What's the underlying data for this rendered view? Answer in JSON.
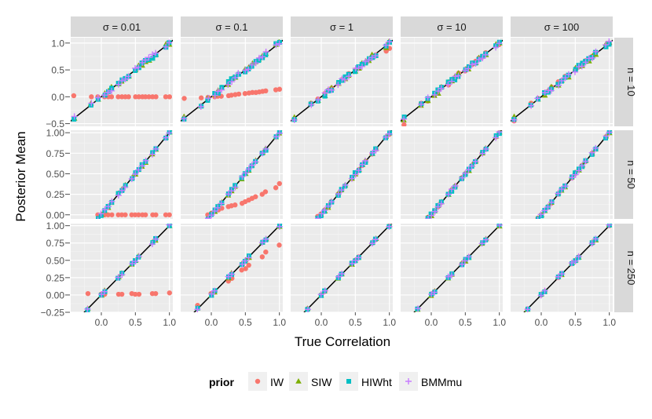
{
  "chart_data": {
    "type": "scatter",
    "layout": "facet-grid",
    "xlabel": "True Correlation",
    "ylabel": "Posterior Mean",
    "col_facet_labels": [
      "σ = 0.01",
      "σ = 0.1",
      "σ = 1",
      "σ = 10",
      "σ = 100"
    ],
    "row_facet_labels": [
      "n = 10",
      "n = 50",
      "n = 250"
    ],
    "x_ticks": [
      "0.0",
      "0.5",
      "1.0"
    ],
    "x_tick_values": [
      0,
      0.5,
      1
    ],
    "xlim": [
      -0.45,
      1.05
    ],
    "row_ylim": [
      [
        -0.55,
        1.1
      ],
      [
        -0.05,
        1.03
      ],
      [
        -0.25,
        1.03
      ]
    ],
    "row_y_ticks": [
      {
        "values": [
          -0.5,
          0,
          0.5,
          1
        ],
        "labels": [
          "−0.5",
          "0.0",
          "0.5",
          "1.0"
        ]
      },
      {
        "values": [
          0,
          0.25,
          0.5,
          0.75,
          1
        ],
        "labels": [
          "0.00",
          "0.25",
          "0.50",
          "0.75",
          "1.00"
        ]
      },
      {
        "values": [
          -0.25,
          0,
          0.25,
          0.5,
          0.75,
          1
        ],
        "labels": [
          "−0.25",
          "0.00",
          "0.25",
          "0.50",
          "0.75",
          "1.00"
        ]
      }
    ],
    "reference_line": "y = x",
    "legend": {
      "title": "prior",
      "position": "bottom",
      "entries": [
        {
          "label": "IW",
          "shape": "circle",
          "color": "#f8766d"
        },
        {
          "label": "SIW",
          "shape": "triangle",
          "color": "#7cae00"
        },
        {
          "label": "HIWht",
          "shape": "square",
          "color": "#00bfc4"
        },
        {
          "label": "BMMmu",
          "shape": "plus",
          "color": "#c77cff"
        }
      ]
    },
    "true_correlations": [
      [
        -0.4,
        -0.15,
        -0.05,
        0.05,
        0.1,
        0.15,
        0.25,
        0.3,
        0.35,
        0.4,
        0.5,
        0.55,
        0.6,
        0.65,
        0.7,
        0.75,
        0.8,
        0.95,
        1.0
      ],
      [
        -0.05,
        0.0,
        0.05,
        0.1,
        0.15,
        0.25,
        0.3,
        0.35,
        0.45,
        0.5,
        0.55,
        0.6,
        0.65,
        0.75,
        0.8,
        0.95,
        1.0
      ],
      [
        -0.2,
        0.0,
        0.05,
        0.25,
        0.3,
        0.45,
        0.5,
        0.55,
        0.75,
        0.8,
        1.0
      ]
    ],
    "iw_posterior": {
      "n = 10": {
        "σ = 0.01": [
          0.02,
          0.0,
          0.0,
          0.0,
          0.0,
          0.0,
          0.0,
          0.0,
          0.0,
          0.0,
          0.0,
          0.0,
          0.0,
          0.0,
          0.0,
          0.0,
          0.0,
          0.0,
          0.0
        ],
        "σ = 0.1": [
          -0.03,
          -0.02,
          -0.01,
          0.0,
          0.01,
          0.01,
          0.02,
          0.03,
          0.04,
          0.05,
          0.06,
          0.07,
          0.08,
          0.08,
          0.09,
          0.1,
          0.11,
          0.13,
          0.14
        ],
        "σ = 1": [
          -0.42,
          -0.12,
          -0.04,
          0.06,
          0.12,
          0.16,
          0.25,
          0.32,
          0.36,
          0.43,
          0.5,
          0.54,
          0.6,
          0.63,
          0.68,
          0.73,
          0.78,
          0.85,
          0.9
        ],
        "σ = 10": [
          -0.52,
          -0.12,
          -0.08,
          0.04,
          0.12,
          0.18,
          0.22,
          0.32,
          0.35,
          0.44,
          0.48,
          0.55,
          0.6,
          0.66,
          0.72,
          0.74,
          0.82,
          0.95,
          0.97
        ],
        "σ = 100": [
          -0.45,
          -0.12,
          -0.03,
          0.08,
          0.1,
          0.18,
          0.28,
          0.3,
          0.38,
          0.4,
          0.5,
          0.56,
          0.6,
          0.67,
          0.7,
          0.75,
          0.8,
          0.95,
          0.98
        ]
      },
      "n = 50": {
        "σ = 0.01": [
          0.0,
          0.0,
          0.0,
          0.0,
          0.0,
          0.0,
          0.0,
          0.0,
          0.0,
          0.0,
          0.0,
          0.0,
          0.0,
          0.0,
          0.0,
          0.0,
          0.0
        ],
        "σ = 0.1": [
          0.0,
          0.02,
          0.04,
          0.06,
          0.08,
          0.1,
          0.11,
          0.12,
          0.14,
          0.16,
          0.18,
          0.2,
          0.22,
          0.25,
          0.28,
          0.33,
          0.38
        ],
        "σ = 1": [
          -0.02,
          0.01,
          0.06,
          0.1,
          0.16,
          0.25,
          0.3,
          0.35,
          0.44,
          0.5,
          0.55,
          0.6,
          0.65,
          0.74,
          0.8,
          0.94,
          0.98
        ],
        "σ = 10": [
          -0.03,
          0.0,
          0.05,
          0.1,
          0.15,
          0.25,
          0.3,
          0.35,
          0.45,
          0.5,
          0.55,
          0.6,
          0.65,
          0.75,
          0.8,
          0.95,
          1.0
        ],
        "σ = 100": [
          -0.04,
          0.0,
          0.05,
          0.1,
          0.14,
          0.25,
          0.3,
          0.35,
          0.45,
          0.5,
          0.55,
          0.6,
          0.65,
          0.75,
          0.8,
          0.95,
          1.0
        ]
      },
      "n = 250": {
        "σ = 0.01": [
          0.02,
          0.01,
          0.01,
          0.01,
          0.01,
          0.02,
          0.01,
          0.01,
          0.02,
          0.02,
          0.03
        ],
        "σ = 0.1": [
          -0.15,
          0.02,
          0.04,
          0.2,
          0.24,
          0.36,
          0.38,
          0.43,
          0.55,
          0.62,
          0.72
        ],
        "σ = 1": [
          -0.2,
          0.0,
          0.05,
          0.25,
          0.3,
          0.45,
          0.5,
          0.55,
          0.75,
          0.8,
          1.0
        ],
        "σ = 10": [
          -0.2,
          0.0,
          0.05,
          0.25,
          0.3,
          0.45,
          0.5,
          0.55,
          0.75,
          0.8,
          1.0
        ],
        "σ = 100": [
          -0.2,
          0.0,
          0.05,
          0.25,
          0.3,
          0.45,
          0.5,
          0.55,
          0.75,
          0.8,
          1.0
        ]
      }
    },
    "other_priors_posterior": "approximately equal to the true correlation (on the y = x line) in every panel"
  }
}
